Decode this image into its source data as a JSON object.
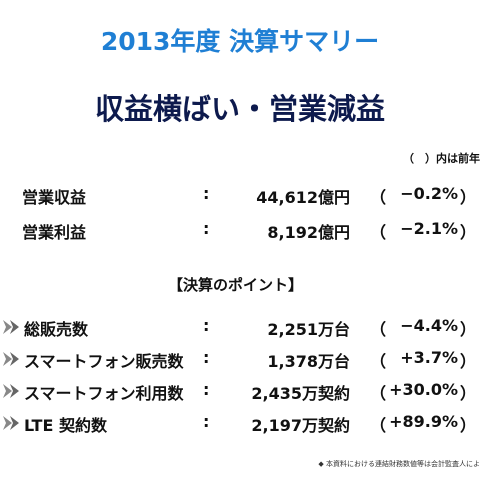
{
  "header": {
    "title": "2013年度 決算サマリー",
    "subtitle": "収益横ばい・営業減益",
    "note": "（　）内は前年"
  },
  "results": [
    {
      "label": "営業収益",
      "value": "44,612億円",
      "change": "−0.2%"
    },
    {
      "label": "営業利益",
      "value": "8,192億円",
      "change": "−2.1%"
    }
  ],
  "points": {
    "heading": "【決算のポイント】",
    "rows": [
      {
        "label": "総販売数",
        "value": "2,251万台",
        "change": "−4.4%"
      },
      {
        "label": "スマートフォン販売数",
        "value": "1,378万台",
        "change": "+3.7%"
      },
      {
        "label": "スマートフォン利用数",
        "value": "2,435万契約",
        "change": "+30.0%"
      },
      {
        "label": "LTE 契約数",
        "value": "2,197万契約",
        "change": "+89.9%"
      }
    ]
  },
  "footer": "◆ 本資料における連結財務数値等は会計監査人によ"
}
